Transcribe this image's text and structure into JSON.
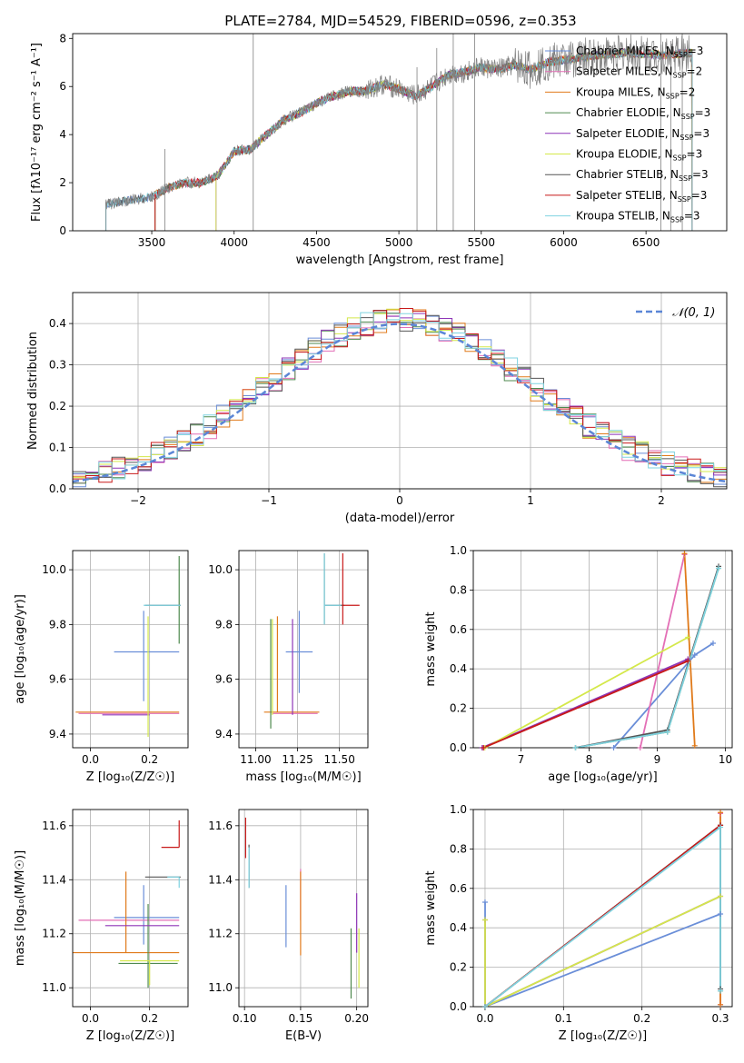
{
  "figure": {
    "title": "PLATE=2784, MJD=54529, FIBERID=0596, z=0.353"
  },
  "fit_labels": [
    {
      "name": "Chabrier MILES",
      "nssp": "3",
      "color": "#6a8ed8"
    },
    {
      "name": "Salpeter MILES",
      "nssp": "2",
      "color": "#e36fb6"
    },
    {
      "name": "Kroupa MILES",
      "nssp": "2",
      "color": "#e07a1a"
    },
    {
      "name": "Chabrier ELODIE",
      "nssp": "3",
      "color": "#4f8a4f"
    },
    {
      "name": "Salpeter ELODIE",
      "nssp": "3",
      "color": "#8e35b7"
    },
    {
      "name": "Kroupa ELODIE",
      "nssp": "3",
      "color": "#d4e84a"
    },
    {
      "name": "Chabrier STELIB",
      "nssp": "3",
      "color": "#555555"
    },
    {
      "name": "Salpeter STELIB",
      "nssp": "3",
      "color": "#c81919"
    },
    {
      "name": "Kroupa STELIB",
      "nssp": "3",
      "color": "#7fd3e0"
    }
  ],
  "chart_data": [
    {
      "id": "spectrum",
      "type": "line",
      "title": "PLATE=2784, MJD=54529, FIBERID=0596, z=0.353",
      "xlabel": "wavelength [Angstrom, rest frame]",
      "ylabel": "Flux [fλ10⁻¹⁷ erg cm⁻² s⁻¹ A⁻¹]",
      "xlim": [
        3020,
        6990
      ],
      "ylim": [
        0,
        8.2
      ],
      "xticks": [
        3500,
        4000,
        4500,
        5000,
        5500,
        6000,
        6500
      ],
      "yticks": [
        0,
        2,
        4,
        6,
        8
      ],
      "grid": false,
      "legend": "top-right",
      "data_color": "#808080",
      "data_x_start": 3220,
      "data_x_end": 6780,
      "continuum_knots": [
        [
          3220,
          1.1
        ],
        [
          3400,
          1.3
        ],
        [
          3500,
          1.4
        ],
        [
          3600,
          1.8
        ],
        [
          3700,
          2.0
        ],
        [
          3800,
          2.0
        ],
        [
          3900,
          2.3
        ],
        [
          4000,
          3.3
        ],
        [
          4100,
          3.4
        ],
        [
          4200,
          4.0
        ],
        [
          4300,
          4.6
        ],
        [
          4400,
          4.9
        ],
        [
          4500,
          5.3
        ],
        [
          4600,
          5.6
        ],
        [
          4700,
          5.8
        ],
        [
          4800,
          5.8
        ],
        [
          4900,
          6.1
        ],
        [
          5000,
          5.9
        ],
        [
          5100,
          5.6
        ],
        [
          5200,
          6.0
        ],
        [
          5300,
          6.5
        ],
        [
          5400,
          6.6
        ],
        [
          5500,
          6.8
        ],
        [
          5600,
          6.7
        ],
        [
          5700,
          6.9
        ],
        [
          5800,
          6.7
        ],
        [
          5900,
          7.0
        ],
        [
          6000,
          7.1
        ],
        [
          6200,
          7.3
        ],
        [
          6400,
          7.4
        ],
        [
          6600,
          7.3
        ],
        [
          6780,
          7.4
        ]
      ],
      "spikes": [
        [
          4116,
          8.2
        ],
        [
          3580,
          3.4
        ],
        [
          5110,
          6.8
        ],
        [
          5230,
          7.6
        ],
        [
          5330,
          8.2
        ],
        [
          5460,
          8.2
        ],
        [
          6590,
          8.2
        ],
        [
          6650,
          7.9
        ],
        [
          6720,
          8.2
        ]
      ],
      "model_starts": [
        3222,
        3520,
        3520,
        3520,
        3890,
        3890,
        3222,
        3520,
        3222
      ]
    },
    {
      "id": "residuals",
      "type": "histogram",
      "xlabel": "(data-model)/error",
      "ylabel": "Normed distribution",
      "xlim": [
        -2.5,
        2.5
      ],
      "ylim": [
        0,
        0.475
      ],
      "xticks": [
        -2,
        -1,
        0,
        1,
        2
      ],
      "yticks": [
        0.0,
        0.1,
        0.2,
        0.3,
        0.4
      ],
      "grid": true,
      "legend": "top-right",
      "reference_label": "𝒩(0, 1)",
      "reference_color": "#5b86d6",
      "bin_width": 0.1
    },
    {
      "id": "age-vs-Z",
      "type": "scatter",
      "xlabel": "Z [log₁₀(Z/Z☉)]",
      "ylabel": "age  [log₁₀(age/yr)]",
      "xlim": [
        -0.06,
        0.33
      ],
      "ylim": [
        9.35,
        10.07
      ],
      "xticks": [
        0.0,
        0.2
      ],
      "yticks": [
        9.4,
        9.6,
        9.8,
        10.0
      ],
      "grid": true,
      "points": [
        {
          "fit": 0,
          "x": 0.18,
          "y": 9.7,
          "xerr": [
            0.1,
            0.12
          ],
          "yerr": [
            0.18,
            0.15
          ]
        },
        {
          "fit": 1,
          "x": 0.12,
          "y": 9.475,
          "xerr": [
            0.16,
            0.18
          ],
          "yerr": [
            0.0,
            0.0
          ]
        },
        {
          "fit": 2,
          "x": 0.15,
          "y": 9.48,
          "xerr": [
            0.2,
            0.15
          ],
          "yerr": [
            0.0,
            0.0
          ]
        },
        {
          "fit": 3,
          "x": 0.3,
          "y": 9.87,
          "xerr": [
            0.0,
            0.0
          ],
          "yerr": [
            0.14,
            0.18
          ]
        },
        {
          "fit": 4,
          "x": 0.1,
          "y": 9.47,
          "xerr": [
            0.06,
            0.1
          ],
          "yerr": [
            0.0,
            0.0
          ]
        },
        {
          "fit": 5,
          "x": 0.195,
          "y": 9.47,
          "xerr": [
            0.0,
            0.0
          ],
          "yerr": [
            0.08,
            0.36
          ]
        },
        {
          "fit": 6,
          "x": 0.245,
          "y": 9.87,
          "xerr": [
            0.06,
            0.06
          ],
          "yerr": [
            0.0,
            0.0
          ]
        },
        {
          "fit": 7,
          "x": 0.3,
          "y": 9.87,
          "xerr": [
            0.0,
            0.0
          ],
          "yerr": [
            0.0,
            0.0
          ]
        },
        {
          "fit": 8,
          "x": 0.26,
          "y": 9.87,
          "xerr": [
            0.08,
            0.045
          ],
          "yerr": [
            0.0,
            0.0
          ]
        }
      ]
    },
    {
      "id": "age-vs-mass",
      "type": "scatter",
      "xlabel": "mass [log₁₀(M/M☉)]",
      "ylabel": "",
      "xlim": [
        10.9,
        11.67
      ],
      "ylim": [
        9.35,
        10.07
      ],
      "xticks": [
        11.0,
        11.25,
        11.5
      ],
      "yticks": [
        9.4,
        9.6,
        9.8,
        10.0
      ],
      "grid": true,
      "points": [
        {
          "fit": 0,
          "x": 11.26,
          "y": 9.7,
          "xerr": [
            0.08,
            0.08
          ],
          "yerr": [
            0.15,
            0.15
          ]
        },
        {
          "fit": 1,
          "x": 11.25,
          "y": 9.475,
          "xerr": [
            0.15,
            0.12
          ],
          "yerr": [
            0.0,
            0.0
          ]
        },
        {
          "fit": 2,
          "x": 11.13,
          "y": 9.48,
          "xerr": [
            0.08,
            0.25
          ],
          "yerr": [
            0.0,
            0.35
          ]
        },
        {
          "fit": 3,
          "x": 11.09,
          "y": 9.47,
          "xerr": [
            0.0,
            0.0
          ],
          "yerr": [
            0.05,
            0.35
          ]
        },
        {
          "fit": 4,
          "x": 11.22,
          "y": 9.47,
          "xerr": [
            0.0,
            0.0
          ],
          "yerr": [
            0.0,
            0.35
          ]
        },
        {
          "fit": 5,
          "x": 11.1,
          "y": 9.47,
          "xerr": [
            0.0,
            0.0
          ],
          "yerr": [
            0.0,
            0.35
          ]
        },
        {
          "fit": 6,
          "x": 11.41,
          "y": 9.87,
          "xerr": [
            0.0,
            0.12
          ],
          "yerr": [
            0.07,
            0.19
          ]
        },
        {
          "fit": 7,
          "x": 11.52,
          "y": 9.87,
          "xerr": [
            0.0,
            0.1
          ],
          "yerr": [
            0.07,
            0.19
          ]
        },
        {
          "fit": 8,
          "x": 11.41,
          "y": 9.87,
          "xerr": [
            0.0,
            0.1
          ],
          "yerr": [
            0.07,
            0.19
          ]
        }
      ]
    },
    {
      "id": "weight-vs-age",
      "type": "line",
      "xlabel": "age  [log₁₀(age/yr)]",
      "ylabel": "mass weight",
      "xlim": [
        6.3,
        10.1
      ],
      "ylim": [
        0,
        1.0
      ],
      "xticks": [
        7,
        8,
        9,
        10
      ],
      "yticks": [
        0.0,
        0.2,
        0.4,
        0.6,
        0.8,
        1.0
      ],
      "grid": true,
      "series": [
        {
          "fit": 0,
          "points": [
            [
              8.36,
              0.0
            ],
            [
              9.55,
              0.47
            ],
            [
              9.82,
              0.53
            ]
          ]
        },
        {
          "fit": 1,
          "points": [
            [
              8.75,
              0.0
            ],
            [
              9.4,
              0.98
            ]
          ]
        },
        {
          "fit": 2,
          "points": [
            [
              9.4,
              0.985
            ],
            [
              9.55,
              0.01
            ]
          ]
        },
        {
          "fit": 3,
          "points": [
            [
              7.8,
              0.0
            ],
            [
              9.15,
              0.08
            ],
            [
              9.9,
              0.91
            ]
          ]
        },
        {
          "fit": 4,
          "points": [
            [
              6.43,
              0.0
            ],
            [
              9.45,
              0.45
            ]
          ]
        },
        {
          "fit": 5,
          "points": [
            [
              6.47,
              0.0
            ],
            [
              9.45,
              0.56
            ]
          ]
        },
        {
          "fit": 6,
          "points": [
            [
              7.8,
              0.0
            ],
            [
              9.15,
              0.09
            ],
            [
              9.9,
              0.92
            ]
          ]
        },
        {
          "fit": 7,
          "points": [
            [
              6.45,
              0.0
            ],
            [
              9.45,
              0.44
            ]
          ]
        },
        {
          "fit": 8,
          "points": [
            [
              7.8,
              0.0
            ],
            [
              9.15,
              0.08
            ],
            [
              9.9,
              0.91
            ]
          ]
        }
      ]
    },
    {
      "id": "mass-vs-Z",
      "type": "scatter",
      "xlabel": "Z [log₁₀(Z/Z☉)]",
      "ylabel": "mass [log₁₀(M/M☉)]",
      "xlim": [
        -0.06,
        0.33
      ],
      "ylim": [
        10.93,
        11.66
      ],
      "xticks": [
        0.0,
        0.2
      ],
      "yticks": [
        11.0,
        11.2,
        11.4,
        11.6
      ],
      "grid": true,
      "points": [
        {
          "fit": 0,
          "x": 0.18,
          "y": 11.26,
          "xerr": [
            0.1,
            0.12
          ],
          "yerr": [
            0.1,
            0.12
          ]
        },
        {
          "fit": 1,
          "x": 0.1,
          "y": 11.25,
          "xerr": [
            0.14,
            0.2
          ],
          "yerr": [
            0.0,
            0.0
          ]
        },
        {
          "fit": 2,
          "x": 0.12,
          "y": 11.13,
          "xerr": [
            0.18,
            0.18
          ],
          "yerr": [
            0.0,
            0.3
          ]
        },
        {
          "fit": 3,
          "x": 0.195,
          "y": 11.09,
          "xerr": [
            0.1,
            0.1
          ],
          "yerr": [
            0.09,
            0.22
          ]
        },
        {
          "fit": 4,
          "x": 0.15,
          "y": 11.23,
          "xerr": [
            0.1,
            0.15
          ],
          "yerr": [
            0.0,
            0.0
          ]
        },
        {
          "fit": 5,
          "x": 0.2,
          "y": 11.1,
          "xerr": [
            0.1,
            0.1
          ],
          "yerr": [
            0.09,
            0.0
          ]
        },
        {
          "fit": 6,
          "x": 0.245,
          "y": 11.41,
          "xerr": [
            0.06,
            0.06
          ],
          "yerr": [
            0.0,
            0.0
          ]
        },
        {
          "fit": 7,
          "x": 0.3,
          "y": 11.52,
          "xerr": [
            0.06,
            0.0
          ],
          "yerr": [
            0.0,
            0.1
          ]
        },
        {
          "fit": 8,
          "x": 0.3,
          "y": 11.41,
          "xerr": [
            0.04,
            0.0
          ],
          "yerr": [
            0.04,
            0.0
          ]
        }
      ]
    },
    {
      "id": "mass-vs-EBV",
      "type": "scatter",
      "xlabel": "E(B-V)",
      "ylabel": "",
      "xlim": [
        0.095,
        0.21
      ],
      "ylim": [
        10.93,
        11.66
      ],
      "xticks": [
        0.1,
        0.15,
        0.2
      ],
      "yticks": [
        11.0,
        11.2,
        11.4,
        11.6
      ],
      "grid": true,
      "points": [
        {
          "fit": 0,
          "x": 0.137,
          "y": 11.26,
          "xerr": [
            0.0,
            0.0
          ],
          "yerr": [
            0.11,
            0.12
          ]
        },
        {
          "fit": 1,
          "x": 0.15,
          "y": 11.25,
          "xerr": [
            0.0,
            0.0
          ],
          "yerr": [
            0.0,
            0.19
          ]
        },
        {
          "fit": 2,
          "x": 0.15,
          "y": 11.25,
          "xerr": [
            0.0,
            0.0
          ],
          "yerr": [
            0.13,
            0.18
          ]
        },
        {
          "fit": 3,
          "x": 0.195,
          "y": 11.09,
          "xerr": [
            0.0,
            0.0
          ],
          "yerr": [
            0.13,
            0.13
          ]
        },
        {
          "fit": 4,
          "x": 0.2,
          "y": 11.23,
          "xerr": [
            0.0,
            0.0
          ],
          "yerr": [
            0.1,
            0.12
          ]
        },
        {
          "fit": 5,
          "x": 0.202,
          "y": 11.1,
          "xerr": [
            0.0,
            0.0
          ],
          "yerr": [
            0.1,
            0.12
          ]
        },
        {
          "fit": 6,
          "x": 0.104,
          "y": 11.41,
          "xerr": [
            0.0,
            0.0
          ],
          "yerr": [
            0.04,
            0.12
          ]
        },
        {
          "fit": 7,
          "x": 0.101,
          "y": 11.52,
          "xerr": [
            0.0,
            0.0
          ],
          "yerr": [
            0.04,
            0.11
          ]
        },
        {
          "fit": 8,
          "x": 0.104,
          "y": 11.41,
          "xerr": [
            0.0,
            0.0
          ],
          "yerr": [
            0.04,
            0.11
          ]
        }
      ]
    },
    {
      "id": "weight-vs-Z",
      "type": "line",
      "xlabel": "Z [log₁₀(Z/Z☉)]",
      "ylabel": "mass weight",
      "xlim": [
        -0.015,
        0.315
      ],
      "ylim": [
        0,
        1.0
      ],
      "xticks": [
        0.0,
        0.1,
        0.2,
        0.3
      ],
      "yticks": [
        0.0,
        0.2,
        0.4,
        0.6,
        0.8,
        1.0
      ],
      "grid": true,
      "series": [
        {
          "fit": 0,
          "points": [
            [
              0.0,
              0.53
            ],
            [
              0.0,
              0.0
            ],
            [
              0.3,
              0.47
            ]
          ]
        },
        {
          "fit": 1,
          "points": [
            [
              0.3,
              0.98
            ],
            [
              0.3,
              0.01
            ]
          ]
        },
        {
          "fit": 2,
          "points": [
            [
              0.3,
              0.985
            ],
            [
              0.3,
              0.01
            ]
          ]
        },
        {
          "fit": 3,
          "points": [
            [
              0.0,
              0.0
            ],
            [
              0.3,
              0.92
            ],
            [
              0.3,
              0.08
            ]
          ]
        },
        {
          "fit": 4,
          "points": [
            [
              0.0,
              0.44
            ],
            [
              0.0,
              0.0
            ],
            [
              0.3,
              0.56
            ]
          ]
        },
        {
          "fit": 5,
          "points": [
            [
              0.0,
              0.44
            ],
            [
              0.0,
              0.0
            ],
            [
              0.3,
              0.56
            ]
          ]
        },
        {
          "fit": 6,
          "points": [
            [
              0.0,
              0.0
            ],
            [
              0.3,
              0.92
            ],
            [
              0.3,
              0.09
            ]
          ]
        },
        {
          "fit": 7,
          "points": [
            [
              0.0,
              0.0
            ],
            [
              0.3,
              0.92
            ]
          ]
        },
        {
          "fit": 8,
          "points": [
            [
              0.0,
              0.0
            ],
            [
              0.3,
              0.91
            ],
            [
              0.3,
              0.08
            ]
          ]
        }
      ]
    }
  ]
}
